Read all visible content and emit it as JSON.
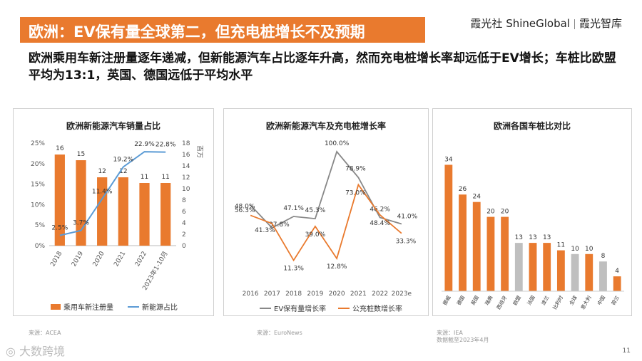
{
  "header": {
    "title": "欧洲：EV保有量全球第二，但充电桩增长不及预期",
    "brand_left": "霞光社 ShineGlobal",
    "brand_right": "霞光智库"
  },
  "subtitle": "欧洲乘用车新注册量逐年递减，但新能源汽车占比逐年升高，然而充电桩增长率却远低于EV增长；车桩比欧盟平均为13:1，英国、德国远低于平均水平",
  "sources": {
    "chart1": "来源：ACEA",
    "chart2": "来源：EuroNews",
    "chart3": "来源：IEA",
    "chart3_note": "数据截至2023年4月"
  },
  "footer": {
    "logo": "大数跨境",
    "page": "11"
  },
  "colors": {
    "orange": "#e97a2e",
    "blue": "#5b9bd5",
    "gray": "#888888",
    "lightgray": "#bfbfbf"
  },
  "chart_data": [
    {
      "type": "bar",
      "title": "欧洲新能源汽车销量占比",
      "categories": [
        "2018",
        "2019",
        "2020",
        "2021",
        "2022",
        "2023年1-10月"
      ],
      "series": [
        {
          "name": "乘用车新注册量",
          "axis": "right",
          "kind": "bar",
          "values": [
            16,
            15,
            12,
            12,
            11,
            11
          ]
        },
        {
          "name": "新能源占比",
          "axis": "left",
          "kind": "line",
          "values": [
            2.5,
            3.7,
            11.4,
            19.2,
            22.9,
            22.8
          ],
          "labels": [
            "2.5%",
            "3.7%",
            "11.4%",
            "19.2%",
            "22.9%",
            "22.8%"
          ]
        }
      ],
      "left_axis": {
        "ylim": [
          0,
          25
        ],
        "ticks": [
          "0%",
          "5%",
          "10%",
          "15%",
          "20%",
          "25%"
        ]
      },
      "right_axis": {
        "label": "百万",
        "ylim": [
          0,
          18
        ],
        "ticks": [
          "0",
          "2",
          "4",
          "6",
          "8",
          "10",
          "12",
          "14",
          "16",
          "18"
        ]
      }
    },
    {
      "type": "line",
      "title": "欧洲新能源汽车及充电桩增长率",
      "categories": [
        "2016",
        "2017",
        "2018",
        "2019",
        "2020",
        "2021",
        "2022",
        "2023e"
      ],
      "ylim": [
        0,
        100
      ],
      "series": [
        {
          "name": "EV保有量增长率",
          "values": [
            56.3,
            37.8,
            47.1,
            45.3,
            100.0,
            78.9,
            46.2,
            41.0
          ],
          "labels": [
            "56.3%",
            "37.8%",
            "47.1%",
            "45.3%",
            "100.0%",
            "78.9%",
            "46.2%",
            "41.0%"
          ]
        },
        {
          "name": "公充桩数增长率",
          "values": [
            48.0,
            41.3,
            11.3,
            39.0,
            12.8,
            73.0,
            48.4,
            33.3
          ],
          "labels": [
            "48.0%",
            "41.3%",
            "11.3%",
            "39.0%",
            "12.8%",
            "73.0%",
            "48.4%",
            "33.3%"
          ]
        }
      ]
    },
    {
      "type": "bar",
      "title": "欧洲各国车桩比对比",
      "categories": [
        "挪威",
        "德国",
        "英国",
        "瑞典",
        "西班牙",
        "欧盟",
        "法国",
        "波兰",
        "比利时",
        "全球",
        "意大利",
        "中国",
        "荷兰"
      ],
      "values": [
        34,
        26,
        24,
        20,
        20,
        13,
        13,
        13,
        11,
        10,
        10,
        8,
        4
      ],
      "highlight": [
        false,
        false,
        false,
        false,
        false,
        true,
        false,
        false,
        false,
        true,
        false,
        true,
        false
      ],
      "ylim": [
        0,
        36
      ]
    }
  ]
}
